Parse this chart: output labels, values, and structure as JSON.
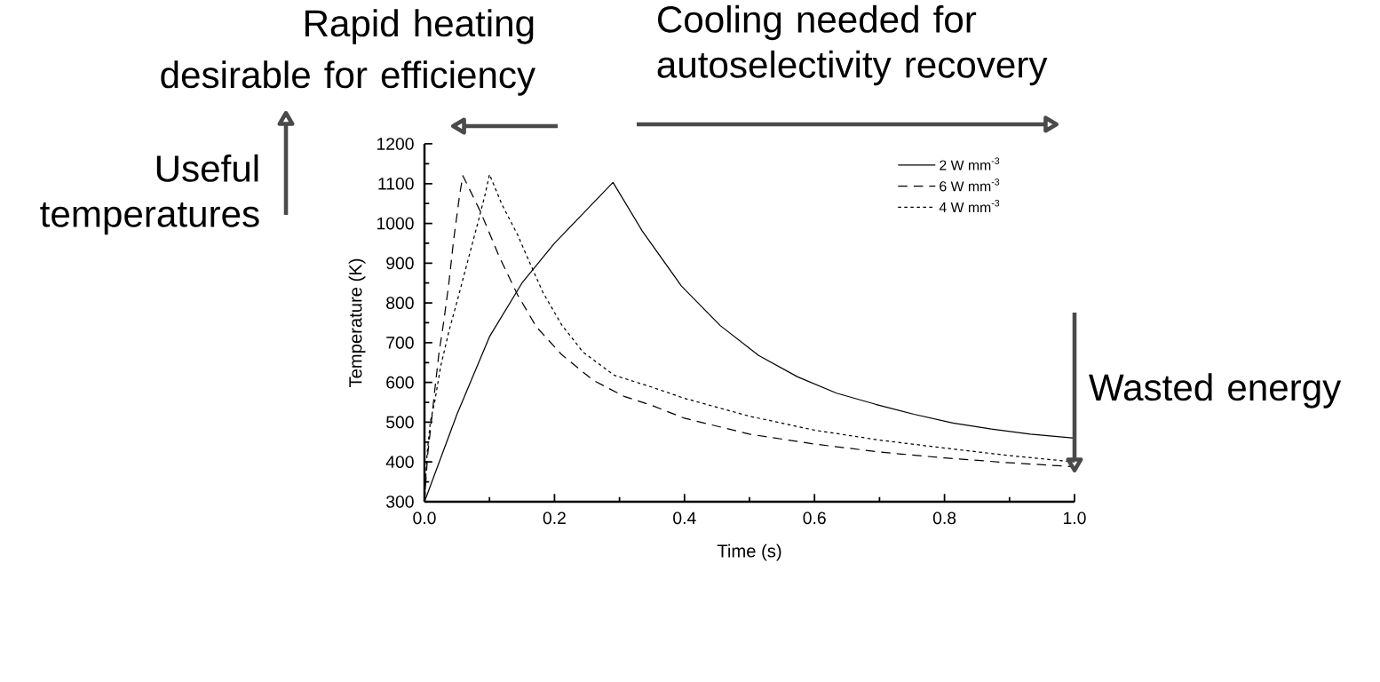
{
  "chart_data": {
    "type": "line",
    "xlabel": "Time (s)",
    "ylabel": "Temperature (K)",
    "xlim": [
      0,
      1
    ],
    "ylim": [
      300,
      1200
    ],
    "xticks": [
      {
        "value": 0,
        "label": "0.0"
      },
      0.2,
      0.4,
      0.6,
      0.8,
      {
        "value": 1,
        "label": "1.0"
      }
    ],
    "yticks": [
      300,
      400,
      500,
      600,
      700,
      800,
      900,
      1000,
      1100,
      1200
    ],
    "grid": false,
    "legend": "top right",
    "marker": "none",
    "annotations": [
      "Rapid heating",
      "desirable for efficiency",
      "Cooling needed for autoselectivity recovery",
      "Useful temperatures",
      "Wasted energy"
    ],
    "series": [
      {
        "name": "2 W mm$^{-3}$",
        "color": "#000000",
        "line_style": "solid",
        "x": [
          0,
          0.05,
          0.1,
          0.15,
          0.2,
          0.25,
          0.29,
          0.335,
          0.395,
          0.455,
          0.514,
          0.574,
          0.634,
          0.694,
          0.753,
          0.813,
          0.872,
          0.932,
          1.0
        ],
        "values": [
          300,
          520,
          715,
          850,
          950,
          1035,
          1103,
          981,
          843,
          743,
          668,
          614,
          573,
          545,
          520,
          498,
          483,
          470,
          460
        ]
      },
      {
        "name": "6 W mm$^{-3}$",
        "color": "#000000",
        "line_style": "dashed",
        "x": [
          0,
          0.005,
          0.011,
          0.016,
          0.022,
          0.03,
          0.0375,
          0.045,
          0.054,
          0.059,
          0.086,
          0.114,
          0.143,
          0.172,
          0.211,
          0.259,
          0.307,
          0.35,
          0.4,
          0.5,
          0.6,
          0.7,
          0.8,
          0.9,
          1.0
        ],
        "values": [
          300,
          420,
          507,
          583,
          670,
          757,
          850,
          960,
          1071,
          1120,
          1030,
          920,
          821,
          740,
          670,
          606,
          565,
          542,
          510,
          470,
          445,
          425,
          410,
          398,
          388
        ]
      },
      {
        "name": "4 W mm$^{-3}$",
        "color": "#000000",
        "line_style": "dotted",
        "x": [
          0,
          0.004,
          0.009,
          0.016,
          0.025,
          0.0375,
          0.052,
          0.066,
          0.083,
          0.093,
          0.1,
          0.119,
          0.143,
          0.163,
          0.182,
          0.211,
          0.244,
          0.292,
          0.35,
          0.4,
          0.5,
          0.6,
          0.7,
          0.8,
          0.9,
          1.0
        ],
        "values": [
          300,
          420,
          501,
          554,
          641,
          728,
          815,
          902,
          1007,
          1071,
          1123,
          1048,
          972,
          897,
          827,
          745,
          676,
          618,
          588,
          560,
          515,
          480,
          455,
          435,
          416,
          400
        ]
      }
    ]
  }
}
